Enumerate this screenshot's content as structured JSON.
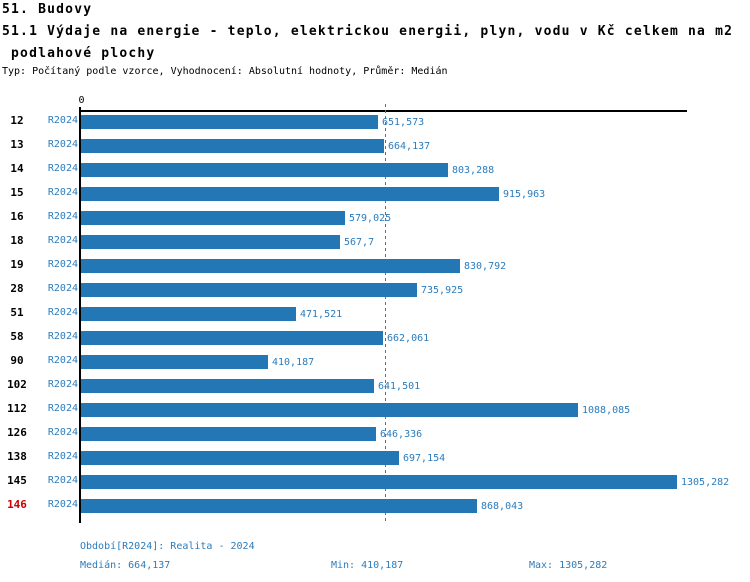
{
  "header": {
    "title": "51. Budovy",
    "subtitle_line1": "51.1 Výdaje na energie - teplo, elektrickou energii, plyn, vodu v Kč celkem na m2",
    "subtitle_line2": " podlahové plochy",
    "meta": "Typ: Počítaný podle vzorce, Vyhodnocení: Absolutní hodnoty, Průměr: Medián"
  },
  "chart_data": {
    "type": "bar",
    "orientation": "horizontal",
    "title": "51.1 Výdaje na energie - teplo, elektrickou energii, plyn, vodu v Kč celkem na m2 podlahové plochy",
    "axis_origin_label": "0",
    "series_label": "R2024",
    "categories": [
      "12",
      "13",
      "14",
      "15",
      "16",
      "18",
      "19",
      "28",
      "51",
      "58",
      "90",
      "102",
      "112",
      "126",
      "138",
      "145",
      "146"
    ],
    "values": [
      651.573,
      664.137,
      803.288,
      915.963,
      579.025,
      567.7,
      830.792,
      735.925,
      471.521,
      662.061,
      410.187,
      641.501,
      1088.085,
      646.336,
      697.154,
      1305.282,
      868.043
    ],
    "value_labels": [
      "651,573",
      "664,137",
      "803,288",
      "915,963",
      "579,025",
      "567,7",
      "830,792",
      "735,925",
      "471,521",
      "662,061",
      "410,187",
      "641,501",
      "1088,085",
      "646,336",
      "697,154",
      "1305,282",
      "868,043"
    ],
    "highlighted_category": "146",
    "median": 664.137,
    "min": 410.187,
    "max": 1305.282,
    "xlim": [
      0,
      1324
    ],
    "grid": false,
    "legend_position": "none"
  },
  "footer": {
    "period_label": "Období[R2024]: Realita - 2024",
    "median_label": "Medián: 664,137",
    "min_label": "Min: 410,187",
    "max_label": "Max: 1305,282"
  },
  "colors": {
    "bar": "#2377b4",
    "blue_text": "#2b7cbd",
    "highlight_red": "#cc0000",
    "axis_black": "#000000"
  }
}
